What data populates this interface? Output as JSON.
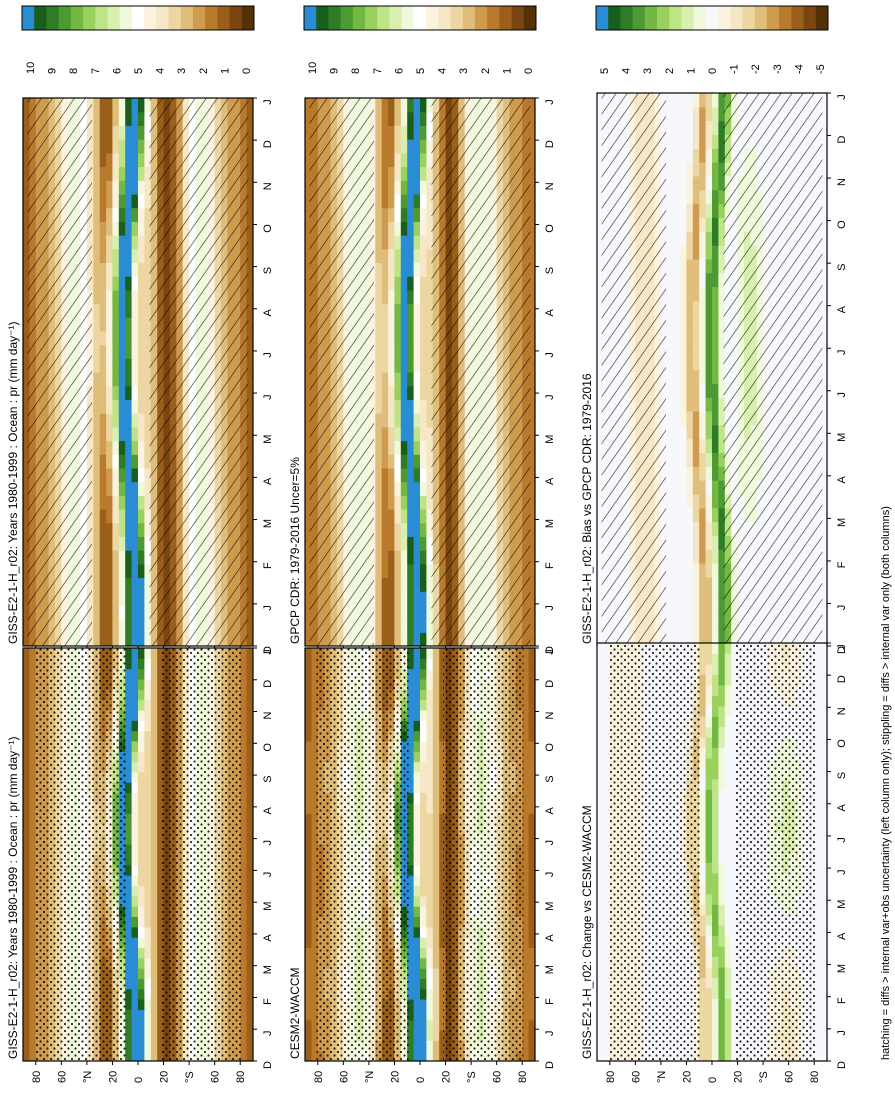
{
  "figure": {
    "footnote": "hatching = diffs > internal var+obs uncertainty (left column only); stippling = diffs > internal var only (both columns)"
  },
  "scales": {
    "abs": {
      "labels": [
        "0",
        "1",
        "2",
        "3",
        "4",
        "5",
        "6",
        "7",
        "8",
        "9",
        "10"
      ],
      "colors": [
        "#543005",
        "#7a4511",
        "#995f1b",
        "#b97a2c",
        "#cf9c4f",
        "#dfbd7a",
        "#ecd6a2",
        "#f6e8c6",
        "#fbf3df",
        "#ffffff",
        "#f1f9dc",
        "#d9efb0",
        "#bde486",
        "#99d15e",
        "#73b843",
        "#4e9a32",
        "#2e7c25",
        "#1a5e1c",
        "#2a8dd4"
      ]
    },
    "diff": {
      "labels": [
        "-5",
        "-4",
        "-3",
        "-2",
        "-1",
        "0",
        "1",
        "2",
        "3",
        "4",
        "5"
      ],
      "colors": [
        "#543005",
        "#7a4511",
        "#995f1b",
        "#b97a2c",
        "#cf9c4f",
        "#dfbd7a",
        "#ecd6a2",
        "#f6e8c6",
        "#fbf3df",
        "#f6f8fb",
        "#f1f9dc",
        "#d9efb0",
        "#bde486",
        "#99d15e",
        "#73b843",
        "#4e9a32",
        "#2e7c25",
        "#1a5e1c",
        "#2a8dd4"
      ]
    }
  },
  "chart_data": [
    {
      "type": "heatmap",
      "title": "GISS-E2-1-H_r02: Years 1980-1999 : Ocean : pr (mm day⁻¹)",
      "x": [
        "D",
        "J",
        "F",
        "M",
        "A",
        "M",
        "J",
        "J",
        "A",
        "S",
        "O",
        "N",
        "D",
        "J"
      ],
      "y_ticks": [
        "80",
        "60",
        "°N",
        "20",
        "0",
        "20",
        "°S",
        "60",
        "80"
      ],
      "scale": "abs",
      "field": "model",
      "overlay": "hatch",
      "value_range": [
        0,
        10
      ]
    },
    {
      "type": "heatmap",
      "title": "GISS-E2-1-H_r02: Years 1980-1999 : Ocean : pr (mm day⁻¹)",
      "x": [
        "D",
        "J",
        "F",
        "M",
        "A",
        "M",
        "J",
        "J",
        "A",
        "S",
        "O",
        "N",
        "D",
        "J"
      ],
      "y_ticks": [
        "80",
        "60",
        "°N",
        "20",
        "0",
        "20",
        "°S",
        "60",
        "80"
      ],
      "scale": "abs",
      "field": "model",
      "overlay": "stipple",
      "value_range": [
        0,
        10
      ]
    },
    {
      "type": "heatmap",
      "title": "GPCP CDR: 1979-2016 Uncer=5%",
      "x": [
        "D",
        "J",
        "F",
        "M",
        "A",
        "M",
        "J",
        "J",
        "A",
        "S",
        "O",
        "N",
        "D",
        "J"
      ],
      "y_ticks": [
        "80",
        "60",
        "°N",
        "20",
        "0",
        "20",
        "°S",
        "60",
        "80"
      ],
      "scale": "abs",
      "field": "obs",
      "overlay": "hatch",
      "value_range": [
        0,
        10
      ]
    },
    {
      "type": "heatmap",
      "title": "CESM2-WACCM",
      "x": [
        "D",
        "J",
        "F",
        "M",
        "A",
        "M",
        "J",
        "J",
        "A",
        "S",
        "O",
        "N",
        "D",
        "J"
      ],
      "y_ticks": [
        "80",
        "60",
        "°N",
        "20",
        "0",
        "20",
        "°S",
        "60",
        "80"
      ],
      "scale": "abs",
      "field": "cesm",
      "overlay": "stipple",
      "value_range": [
        0,
        10
      ]
    },
    {
      "type": "heatmap",
      "title": "GISS-E2-1-H_r02: Bias vs GPCP CDR: 1979-2016",
      "x": [
        "D",
        "J",
        "F",
        "M",
        "A",
        "M",
        "J",
        "J",
        "A",
        "S",
        "O",
        "N",
        "D",
        "J"
      ],
      "y_ticks": [
        "80",
        "60",
        "°N",
        "20",
        "0",
        "20",
        "°S",
        "60",
        "80"
      ],
      "scale": "diff",
      "field": "bias",
      "overlay": "hatch",
      "value_range": [
        -5,
        5
      ]
    },
    {
      "type": "heatmap",
      "title": "GISS-E2-1-H_r02: Change vs CESM2-WACCM",
      "x": [
        "D",
        "J",
        "F",
        "M",
        "A",
        "M",
        "J",
        "J",
        "A",
        "S",
        "O",
        "N",
        "D",
        "J"
      ],
      "y_ticks": [
        "80",
        "60",
        "°N",
        "20",
        "0",
        "20",
        "°S",
        "60",
        "80"
      ],
      "scale": "diff",
      "field": "change",
      "overlay": "stipple",
      "value_range": [
        -5,
        5
      ]
    }
  ]
}
